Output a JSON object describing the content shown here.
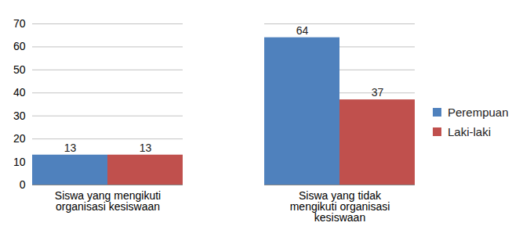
{
  "chart_data": {
    "type": "bar",
    "categories": [
      "Siswa yang mengikuti organisasi kesiswaan",
      "Siswa yang tidak mengikuti organisasi kesiswaan"
    ],
    "series": [
      {
        "name": "Perempuan",
        "color": "#4f81bd",
        "values": [
          13,
          64
        ]
      },
      {
        "name": "Laki-laki",
        "color": "#c0504d",
        "values": [
          13,
          37
        ]
      }
    ],
    "ylim": [
      0,
      70
    ],
    "yticks": [
      0,
      10,
      20,
      30,
      40,
      50,
      60,
      70
    ],
    "grid": true,
    "data_labels": true,
    "legend": "right"
  }
}
